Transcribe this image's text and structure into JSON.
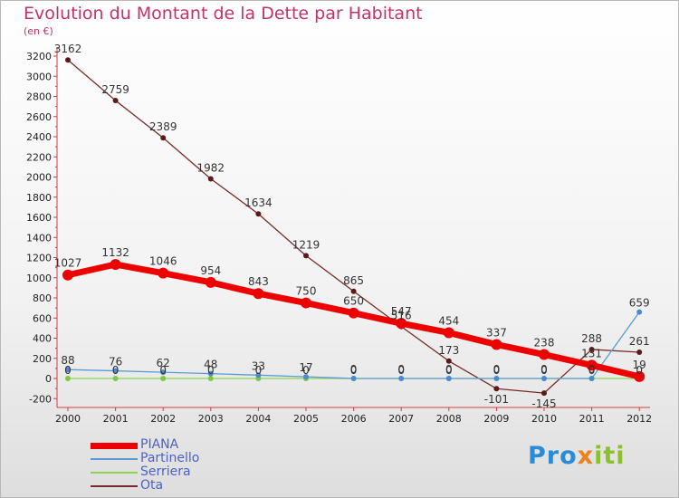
{
  "chart_data": {
    "type": "line",
    "title": "Evolution du Montant de la Dette par Habitant",
    "unit_label": "(en €)",
    "x": [
      "2000",
      "2001",
      "2002",
      "2003",
      "2004",
      "2005",
      "2006",
      "2007",
      "2008",
      "2009",
      "2010",
      "2011",
      "2012"
    ],
    "ylim": [
      -200,
      3200
    ],
    "yticks": [
      -200,
      0,
      200,
      400,
      600,
      800,
      1000,
      1200,
      1400,
      1600,
      1800,
      2000,
      2200,
      2400,
      2600,
      2800,
      3000,
      3200
    ],
    "grid": false,
    "legend_position": "bottom-left",
    "series": [
      {
        "name": "PIANA",
        "color": "#ee0000",
        "values": [
          1027,
          1132,
          1046,
          954,
          843,
          750,
          650,
          547,
          454,
          337,
          238,
          131,
          19
        ],
        "labels": [
          "1027",
          "1132",
          "1046",
          "954",
          "843",
          "750",
          "650",
          "547",
          "454",
          "337",
          "238",
          "131",
          "19"
        ]
      },
      {
        "name": "Partinello",
        "color": "#5b9bd5",
        "values": [
          88,
          76,
          62,
          48,
          33,
          17,
          0,
          0,
          0,
          0,
          0,
          0,
          659
        ],
        "labels": [
          "88",
          "76",
          "62",
          "48",
          "33",
          "17",
          "0",
          "0",
          "0",
          "0",
          "0",
          "0",
          "659"
        ]
      },
      {
        "name": "Serriera",
        "color": "#8fd34e",
        "values": [
          0,
          0,
          0,
          0,
          0,
          0,
          0,
          0,
          0,
          0,
          0,
          0,
          0
        ],
        "labels": [
          "0",
          "0",
          "0",
          "0",
          "0",
          "0",
          "0",
          "0",
          "0",
          "0",
          "0",
          "0",
          "0"
        ]
      },
      {
        "name": "Ota",
        "color": "#7a2a2a",
        "values": [
          3162,
          2759,
          2389,
          1982,
          1634,
          1219,
          865,
          516,
          173,
          -101,
          -145,
          288,
          261
        ],
        "labels": [
          "3162",
          "2759",
          "2389",
          "1982",
          "1634",
          "1219",
          "865",
          "516",
          "173",
          "-101",
          "-145",
          "288",
          "261"
        ]
      }
    ]
  },
  "logo_text": [
    "Pro",
    "x",
    "iti"
  ]
}
